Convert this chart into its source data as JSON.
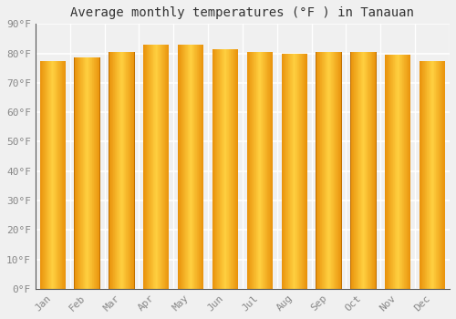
{
  "title": "Average monthly temperatures (°F ) in Tanauan",
  "months": [
    "Jan",
    "Feb",
    "Mar",
    "Apr",
    "May",
    "Jun",
    "Jul",
    "Aug",
    "Sep",
    "Oct",
    "Nov",
    "Dec"
  ],
  "values": [
    77.5,
    78.5,
    80.5,
    83.0,
    83.0,
    81.5,
    80.5,
    80.0,
    80.5,
    80.5,
    79.5,
    77.5
  ],
  "ylim": [
    0,
    90
  ],
  "yticks": [
    0,
    10,
    20,
    30,
    40,
    50,
    60,
    70,
    80,
    90
  ],
  "ytick_labels": [
    "0°F",
    "10°F",
    "20°F",
    "30°F",
    "40°F",
    "50°F",
    "60°F",
    "70°F",
    "80°F",
    "90°F"
  ],
  "bar_color_edge": "#E8900A",
  "bar_color_center": "#FFD040",
  "background_color": "#f0f0f0",
  "grid_color": "#ffffff",
  "title_fontsize": 10,
  "tick_fontsize": 8,
  "bar_width": 0.75
}
